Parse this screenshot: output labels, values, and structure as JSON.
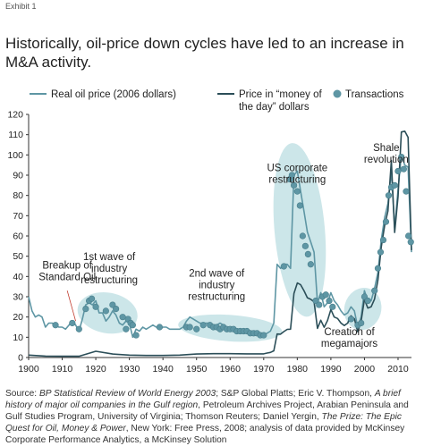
{
  "header": {
    "exhibit": "Exhibit 1",
    "title": "Historically, oil-price down cycles have led to an increase in M&A activity."
  },
  "colors": {
    "real": "#5e96a4",
    "nominal": "#2b4e58",
    "transactions": "#5e96a4",
    "ellipse": "#c7e3e7",
    "axis": "#333333"
  },
  "source": {
    "prefix": "Source: ",
    "ital1": "BP Statistical Review of World Energy 2003",
    "mid1": "; S&P Global Platts; Eric V. Thompson, ",
    "ital2": "A brief history of major oil companies in the Gulf region",
    "mid2": ", Petroleum Archives Project, Arabian Peninsula and Gulf Studies Program, University of Virginia; Thomson Reuters; Daniel Yergin, ",
    "ital3": "The Prize: The Epic Quest for Oil, Money & Power",
    "mid3": ", New York: Free Press, 2008; analysis of data provided by McKinsey Corporate Performance Analytics, a McKinsey Solution"
  },
  "chart_data": {
    "type": "line",
    "xlim": [
      1900,
      2014
    ],
    "ylim": [
      0,
      120
    ],
    "x_ticks": [
      1900,
      1910,
      1920,
      1930,
      1940,
      1950,
      1960,
      1970,
      1980,
      1990,
      2000,
      2010
    ],
    "y_ticks": [
      0,
      10,
      20,
      30,
      40,
      50,
      60,
      70,
      80,
      90,
      100,
      110,
      120
    ],
    "legend": {
      "real": "Real oil price (2006 dollars)",
      "nominal_line1": "Price in “money of",
      "nominal_line2": "the day” dollars",
      "transactions": "Transactions"
    },
    "series": [
      {
        "name": "Real oil price (2006 dollars)",
        "x": [
          1900,
          1901,
          1902,
          1903,
          1904,
          1905,
          1906,
          1907,
          1908,
          1909,
          1910,
          1911,
          1912,
          1913,
          1914,
          1915,
          1916,
          1917,
          1918,
          1919,
          1920,
          1921,
          1922,
          1923,
          1924,
          1925,
          1926,
          1927,
          1928,
          1929,
          1930,
          1931,
          1932,
          1933,
          1934,
          1935,
          1936,
          1937,
          1938,
          1939,
          1940,
          1941,
          1942,
          1943,
          1944,
          1945,
          1946,
          1947,
          1948,
          1949,
          1950,
          1951,
          1952,
          1953,
          1954,
          1955,
          1956,
          1957,
          1958,
          1959,
          1960,
          1961,
          1962,
          1963,
          1964,
          1965,
          1966,
          1967,
          1968,
          1969,
          1970,
          1971,
          1972,
          1973,
          1974,
          1975,
          1976,
          1977,
          1978,
          1979,
          1980,
          1981,
          1982,
          1983,
          1984,
          1985,
          1986,
          1987,
          1988,
          1989,
          1990,
          1991,
          1992,
          1993,
          1994,
          1995,
          1996,
          1997,
          1998,
          1999,
          2000,
          2001,
          2002,
          2003,
          2004,
          2005,
          2006,
          2007,
          2008,
          2009,
          2010,
          2011,
          2012,
          2013,
          2014
        ],
        "values": [
          30,
          23,
          20,
          21,
          20,
          15,
          17,
          17,
          16,
          15,
          15,
          14,
          16,
          18,
          16,
          13,
          19,
          26,
          27,
          26,
          28,
          22,
          22,
          18,
          20,
          23,
          21,
          17,
          16,
          18,
          17,
          10,
          14,
          13,
          15,
          14,
          15,
          16,
          15,
          14,
          15,
          15,
          14,
          14,
          14,
          14,
          15,
          18,
          20,
          19,
          18,
          17,
          17,
          17,
          17,
          16,
          16,
          17,
          16,
          15,
          15,
          14,
          14,
          14,
          13,
          13,
          12,
          12,
          12,
          12,
          11,
          12,
          13,
          17,
          46,
          44,
          46,
          46,
          44,
          90,
          92,
          82,
          72,
          62,
          57,
          52,
          27,
          32,
          25,
          27,
          32,
          28,
          26,
          23,
          21,
          22,
          25,
          23,
          15,
          20,
          33,
          28,
          28,
          34,
          42,
          58,
          69,
          76,
          92,
          64,
          83,
          100,
          95,
          94,
          52
        ]
      },
      {
        "name": "Price in “money of the day” dollars",
        "x": [
          1900,
          1905,
          1910,
          1915,
          1920,
          1925,
          1930,
          1935,
          1940,
          1945,
          1950,
          1955,
          1960,
          1965,
          1970,
          1971,
          1972,
          1973,
          1974,
          1975,
          1976,
          1977,
          1978,
          1979,
          1980,
          1981,
          1982,
          1983,
          1984,
          1985,
          1986,
          1987,
          1988,
          1989,
          1990,
          1991,
          1992,
          1993,
          1994,
          1995,
          1996,
          1997,
          1998,
          1999,
          2000,
          2001,
          2002,
          2003,
          2004,
          2005,
          2006,
          2007,
          2008,
          2009,
          2010,
          2011,
          2012,
          2013,
          2014
        ],
        "values": [
          1.2,
          0.7,
          0.6,
          0.6,
          3.1,
          1.7,
          1.2,
          1.0,
          1.0,
          1.2,
          1.7,
          1.9,
          1.9,
          1.8,
          1.8,
          2.2,
          2.5,
          3.3,
          11.6,
          11.5,
          12.8,
          13.9,
          14.0,
          31.6,
          36.8,
          35.9,
          32.9,
          29.5,
          28.7,
          27.5,
          14.4,
          18.4,
          14.9,
          18.2,
          23.7,
          20.0,
          19.3,
          17.0,
          15.8,
          17.0,
          20.6,
          19.1,
          12.7,
          17.9,
          28.7,
          24.4,
          25.0,
          28.8,
          38.3,
          54.5,
          65.1,
          72.4,
          97.3,
          61.7,
          79.5,
          111.3,
          111.7,
          108.7,
          53
        ]
      }
    ],
    "transactions": {
      "x": [
        1908,
        1913,
        1915,
        1917,
        1918,
        1918.8,
        1920,
        1923,
        1925,
        1926,
        1928,
        1929,
        1929.6,
        1930.4,
        1931,
        1932,
        1939,
        1947,
        1948,
        1950,
        1952,
        1954,
        1955,
        1956,
        1957,
        1958,
        1959,
        1960,
        1961,
        1962,
        1963,
        1964,
        1965,
        1966,
        1967,
        1968,
        1969,
        1970,
        1976,
        1977.8,
        1978.4,
        1979,
        1980,
        1980.8,
        1981.6,
        1982.4,
        1983.2,
        1984,
        1985.5,
        1986.5,
        1987.5,
        1988.5,
        1989.5,
        1990.5,
        1996,
        1998,
        1999,
        2000,
        2001,
        2003,
        2004,
        2004.8,
        2005.6,
        2006.4,
        2007.2,
        2008,
        2009,
        2010,
        2011,
        2011.7,
        2012.4,
        2013.1,
        2013.8
      ],
      "values": [
        16,
        17,
        14,
        24,
        28,
        29,
        25,
        23,
        26,
        24,
        20,
        14,
        19,
        17,
        16,
        11,
        15,
        15,
        15,
        14,
        16,
        16,
        15,
        15,
        14,
        15,
        14,
        14,
        14,
        13,
        13,
        13,
        13,
        12,
        12,
        12,
        11,
        11,
        45,
        88,
        90,
        85,
        82,
        75,
        60,
        55,
        51,
        46,
        28,
        26,
        30,
        31,
        28,
        25,
        19,
        16,
        17,
        30,
        28,
        33,
        44,
        52,
        58,
        67,
        80,
        84,
        85,
        92,
        99,
        93,
        82,
        60,
        57
      ]
    },
    "annotations": [
      {
        "id": "breakup",
        "lines": [
          "Breakup of",
          "Standard Oil"
        ],
        "x": 1911.5
      },
      {
        "id": "wave1",
        "lines": [
          "1st wave of",
          "industry",
          "restructuring"
        ],
        "x": 1924
      },
      {
        "id": "wave2",
        "lines": [
          "2nd wave of",
          "industry",
          "restructuring"
        ],
        "x": 1956
      },
      {
        "id": "us",
        "lines": [
          "US corporate",
          "restructuring"
        ],
        "x": 1980
      },
      {
        "id": "mega",
        "lines": [
          "Creation of",
          "megamajors"
        ],
        "x": 1995.5
      },
      {
        "id": "shale",
        "lines": [
          "Shale",
          "revolution"
        ],
        "x": 2006.5
      }
    ],
    "grid": false
  }
}
